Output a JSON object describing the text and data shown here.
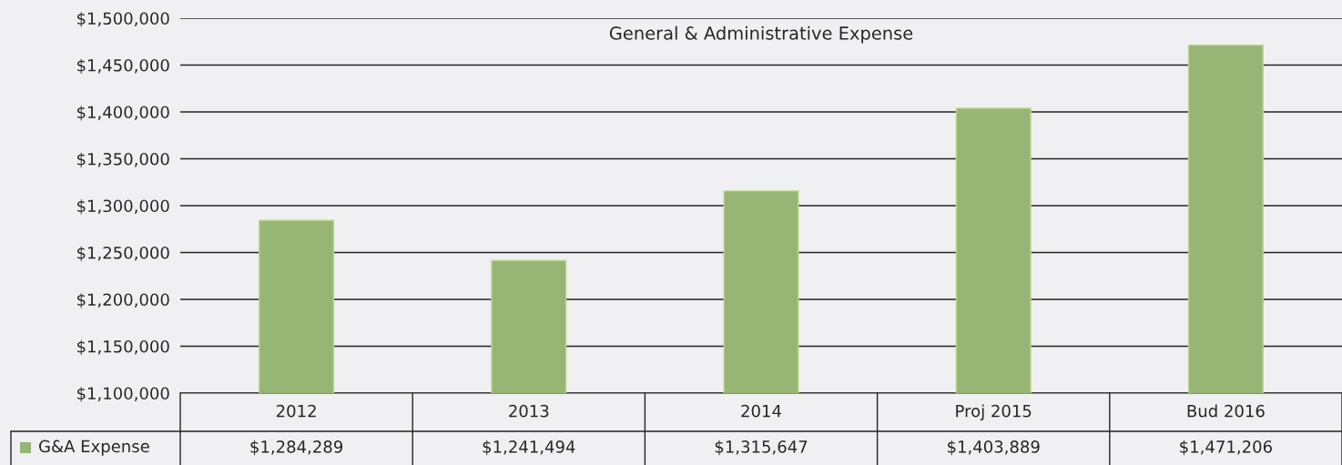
{
  "chart_data": {
    "type": "bar",
    "title": "General & Administrative Expense",
    "categories": [
      "2012",
      "2013",
      "2014",
      "Proj 2015",
      "Bud 2016"
    ],
    "series": [
      {
        "name": "G&A Expense",
        "color": "#97b574",
        "values": [
          1284289,
          1241494,
          1315647,
          1403889,
          1471206
        ],
        "value_labels": [
          "$1,284,289",
          "$1,241,494",
          "$1,315,647",
          "$1,403,889",
          "$1,471,206"
        ]
      }
    ],
    "ylim": [
      1100000,
      1500000
    ],
    "yticks": [
      {
        "value": 1100000,
        "label": "$1,100,000"
      },
      {
        "value": 1150000,
        "label": "$1,150,000"
      },
      {
        "value": 1200000,
        "label": "$1,200,000"
      },
      {
        "value": 1250000,
        "label": "$1,250,000"
      },
      {
        "value": 1300000,
        "label": "$1,300,000"
      },
      {
        "value": 1350000,
        "label": "$1,350,000"
      },
      {
        "value": 1400000,
        "label": "$1,400,000"
      },
      {
        "value": 1450000,
        "label": "$1,450,000"
      },
      {
        "value": 1500000,
        "label": "$1,500,000"
      }
    ],
    "grid": "y",
    "legend": "bottom left"
  }
}
